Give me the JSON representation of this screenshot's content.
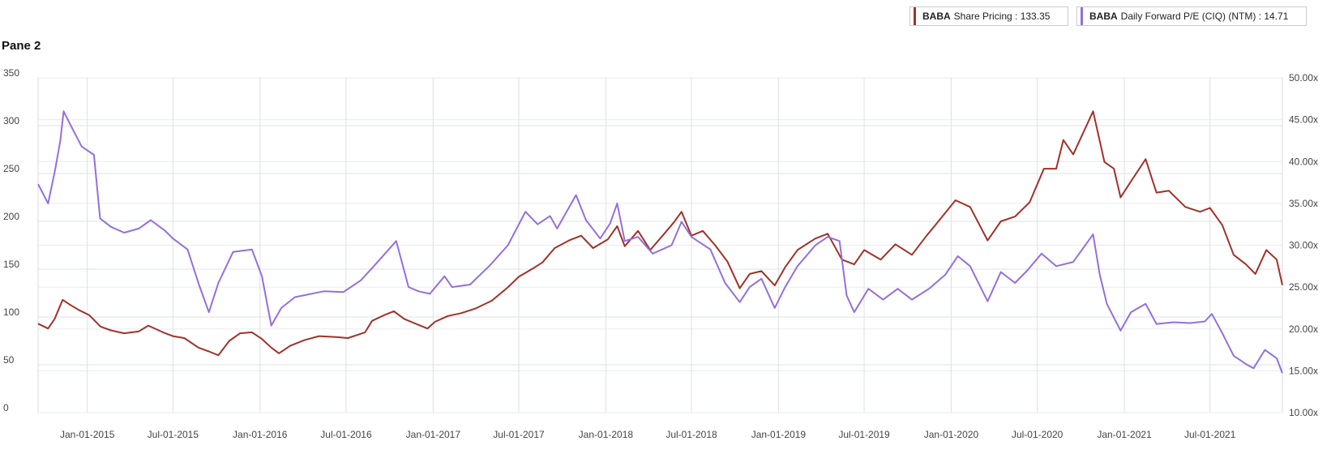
{
  "pane_title": "Pane 2",
  "legend": {
    "price": {
      "ticker": "BABA",
      "label": "Share Pricing : 133.35",
      "color": "#a0322a"
    },
    "pe": {
      "ticker": "BABA",
      "label": "Daily Forward P/E (CIQ) (NTM) : 14.71",
      "color": "#9370db"
    }
  },
  "chart_data": {
    "type": "line",
    "x_ticks": [
      "Jan-01-2015",
      "Jul-01-2015",
      "Jan-01-2016",
      "Jul-01-2016",
      "Jan-01-2017",
      "Jul-01-2017",
      "Jan-01-2018",
      "Jul-01-2018",
      "Jan-01-2019",
      "Jul-01-2019",
      "Jan-01-2020",
      "Jul-01-2020",
      "Jan-01-2021",
      "Jul-01-2021"
    ],
    "left_axis": {
      "ticks": [
        "0",
        "50",
        "100",
        "150",
        "200",
        "250",
        "300",
        "350"
      ],
      "ylim": [
        0,
        350
      ]
    },
    "right_axis": {
      "ticks": [
        "10.00x",
        "15.00x",
        "20.00x",
        "25.00x",
        "30.00x",
        "35.00x",
        "40.00x",
        "45.00x",
        "50.00x"
      ],
      "ylim": [
        10,
        50
      ]
    },
    "grid": true,
    "series": [
      {
        "name": "BABA Share Pricing",
        "axis": "left",
        "color": "#a0322a",
        "points": [
          [
            "2014-09-19",
            93
          ],
          [
            "2014-10-10",
            88
          ],
          [
            "2014-10-24",
            98
          ],
          [
            "2014-11-10",
            118
          ],
          [
            "2014-11-25",
            113
          ],
          [
            "2014-12-15",
            107
          ],
          [
            "2015-01-05",
            102
          ],
          [
            "2015-01-29",
            90
          ],
          [
            "2015-02-20",
            86
          ],
          [
            "2015-03-20",
            83
          ],
          [
            "2015-04-20",
            85
          ],
          [
            "2015-05-10",
            91
          ],
          [
            "2015-06-10",
            84
          ],
          [
            "2015-07-01",
            80
          ],
          [
            "2015-07-25",
            78
          ],
          [
            "2015-08-24",
            68
          ],
          [
            "2015-09-15",
            64
          ],
          [
            "2015-10-05",
            60
          ],
          [
            "2015-10-28",
            75
          ],
          [
            "2015-11-20",
            83
          ],
          [
            "2015-12-15",
            84
          ],
          [
            "2016-01-05",
            77
          ],
          [
            "2016-01-25",
            68
          ],
          [
            "2016-02-10",
            62
          ],
          [
            "2016-03-05",
            70
          ],
          [
            "2016-04-05",
            76
          ],
          [
            "2016-05-05",
            80
          ],
          [
            "2016-06-10",
            79
          ],
          [
            "2016-07-05",
            78
          ],
          [
            "2016-08-10",
            84
          ],
          [
            "2016-08-25",
            96
          ],
          [
            "2016-09-20",
            102
          ],
          [
            "2016-10-10",
            106
          ],
          [
            "2016-11-01",
            98
          ],
          [
            "2016-11-25",
            93
          ],
          [
            "2016-12-20",
            88
          ],
          [
            "2017-01-05",
            95
          ],
          [
            "2017-02-01",
            101
          ],
          [
            "2017-03-01",
            104
          ],
          [
            "2017-04-01",
            109
          ],
          [
            "2017-05-05",
            117
          ],
          [
            "2017-06-08",
            131
          ],
          [
            "2017-07-01",
            142
          ],
          [
            "2017-08-01",
            151
          ],
          [
            "2017-08-20",
            157
          ],
          [
            "2017-09-15",
            172
          ],
          [
            "2017-10-15",
            180
          ],
          [
            "2017-11-10",
            185
          ],
          [
            "2017-12-05",
            172
          ],
          [
            "2018-01-05",
            181
          ],
          [
            "2018-01-25",
            195
          ],
          [
            "2018-02-10",
            174
          ],
          [
            "2018-03-10",
            190
          ],
          [
            "2018-04-05",
            170
          ],
          [
            "2018-05-01",
            185
          ],
          [
            "2018-05-25",
            199
          ],
          [
            "2018-06-10",
            210
          ],
          [
            "2018-07-01",
            185
          ],
          [
            "2018-07-25",
            190
          ],
          [
            "2018-08-20",
            175
          ],
          [
            "2018-09-15",
            158
          ],
          [
            "2018-10-11",
            130
          ],
          [
            "2018-11-01",
            145
          ],
          [
            "2018-11-26",
            148
          ],
          [
            "2018-12-24",
            133
          ],
          [
            "2019-01-15",
            152
          ],
          [
            "2019-02-10",
            170
          ],
          [
            "2019-03-20",
            182
          ],
          [
            "2019-04-15",
            187
          ],
          [
            "2019-05-15",
            160
          ],
          [
            "2019-06-10",
            155
          ],
          [
            "2019-07-01",
            170
          ],
          [
            "2019-08-05",
            160
          ],
          [
            "2019-09-05",
            176
          ],
          [
            "2019-10-10",
            165
          ],
          [
            "2019-11-10",
            185
          ],
          [
            "2019-12-05",
            200
          ],
          [
            "2020-01-10",
            222
          ],
          [
            "2020-02-10",
            215
          ],
          [
            "2020-03-18",
            180
          ],
          [
            "2020-04-15",
            200
          ],
          [
            "2020-05-15",
            205
          ],
          [
            "2020-06-15",
            220
          ],
          [
            "2020-07-15",
            255
          ],
          [
            "2020-08-10",
            255
          ],
          [
            "2020-08-25",
            285
          ],
          [
            "2020-09-15",
            270
          ],
          [
            "2020-10-27",
            315
          ],
          [
            "2020-11-05",
            295
          ],
          [
            "2020-11-20",
            262
          ],
          [
            "2020-12-10",
            255
          ],
          [
            "2020-12-24",
            225
          ],
          [
            "2021-01-10",
            238
          ],
          [
            "2021-02-15",
            265
          ],
          [
            "2021-03-10",
            230
          ],
          [
            "2021-04-05",
            232
          ],
          [
            "2021-05-10",
            215
          ],
          [
            "2021-06-10",
            210
          ],
          [
            "2021-07-01",
            214
          ],
          [
            "2021-07-27",
            196
          ],
          [
            "2021-08-20",
            165
          ],
          [
            "2021-09-15",
            155
          ],
          [
            "2021-10-05",
            145
          ],
          [
            "2021-10-28",
            170
          ],
          [
            "2021-11-19",
            160
          ],
          [
            "2021-12-01",
            133.35
          ]
        ]
      },
      {
        "name": "BABA Daily Forward P/E (CIQ) (NTM)",
        "axis": "right",
        "color": "#9370db",
        "points": [
          [
            "2014-09-19",
            37.3
          ],
          [
            "2014-10-10",
            35.0
          ],
          [
            "2014-10-25",
            39.0
          ],
          [
            "2014-11-05",
            42.5
          ],
          [
            "2014-11-12",
            46.0
          ],
          [
            "2014-11-28",
            44.2
          ],
          [
            "2014-12-20",
            41.8
          ],
          [
            "2015-01-15",
            40.8
          ],
          [
            "2015-01-28",
            33.2
          ],
          [
            "2015-02-20",
            32.2
          ],
          [
            "2015-03-20",
            31.5
          ],
          [
            "2015-04-20",
            32.0
          ],
          [
            "2015-05-15",
            33.0
          ],
          [
            "2015-06-15",
            31.7
          ],
          [
            "2015-07-01",
            30.8
          ],
          [
            "2015-08-01",
            29.5
          ],
          [
            "2015-08-25",
            25.3
          ],
          [
            "2015-09-15",
            22.0
          ],
          [
            "2015-10-05",
            25.5
          ],
          [
            "2015-11-05",
            29.2
          ],
          [
            "2015-12-15",
            29.5
          ],
          [
            "2016-01-05",
            26.3
          ],
          [
            "2016-01-25",
            20.4
          ],
          [
            "2016-02-15",
            22.5
          ],
          [
            "2016-03-15",
            23.8
          ],
          [
            "2016-05-15",
            24.5
          ],
          [
            "2016-06-25",
            24.4
          ],
          [
            "2016-08-01",
            25.8
          ],
          [
            "2016-09-01",
            27.7
          ],
          [
            "2016-10-15",
            30.5
          ],
          [
            "2016-11-10",
            25.0
          ],
          [
            "2016-12-01",
            24.5
          ],
          [
            "2016-12-25",
            24.2
          ],
          [
            "2017-01-25",
            26.3
          ],
          [
            "2017-02-10",
            25.0
          ],
          [
            "2017-03-20",
            25.3
          ],
          [
            "2017-05-01",
            27.6
          ],
          [
            "2017-06-08",
            30.0
          ],
          [
            "2017-07-15",
            34.0
          ],
          [
            "2017-08-10",
            32.5
          ],
          [
            "2017-09-05",
            33.5
          ],
          [
            "2017-09-20",
            32.0
          ],
          [
            "2017-10-30",
            36.0
          ],
          [
            "2017-11-20",
            33.0
          ],
          [
            "2017-12-20",
            30.8
          ],
          [
            "2018-01-10",
            32.6
          ],
          [
            "2018-01-25",
            35.0
          ],
          [
            "2018-02-10",
            30.5
          ],
          [
            "2018-03-10",
            31.0
          ],
          [
            "2018-04-10",
            29.0
          ],
          [
            "2018-05-20",
            30.0
          ],
          [
            "2018-06-10",
            32.8
          ],
          [
            "2018-07-01",
            31.0
          ],
          [
            "2018-08-10",
            29.5
          ],
          [
            "2018-09-10",
            25.5
          ],
          [
            "2018-10-11",
            23.2
          ],
          [
            "2018-11-01",
            25.0
          ],
          [
            "2018-11-26",
            26.0
          ],
          [
            "2018-12-24",
            22.5
          ],
          [
            "2019-01-15",
            25.0
          ],
          [
            "2019-02-10",
            27.5
          ],
          [
            "2019-03-20",
            30.0
          ],
          [
            "2019-04-15",
            31.0
          ],
          [
            "2019-05-10",
            30.5
          ],
          [
            "2019-05-25",
            24.0
          ],
          [
            "2019-06-10",
            22.0
          ],
          [
            "2019-07-10",
            24.8
          ],
          [
            "2019-08-10",
            23.5
          ],
          [
            "2019-09-10",
            24.8
          ],
          [
            "2019-10-10",
            23.5
          ],
          [
            "2019-11-15",
            24.8
          ],
          [
            "2019-12-20",
            26.5
          ],
          [
            "2020-01-15",
            28.7
          ],
          [
            "2020-02-10",
            27.5
          ],
          [
            "2020-03-18",
            23.3
          ],
          [
            "2020-04-15",
            26.8
          ],
          [
            "2020-05-15",
            25.5
          ],
          [
            "2020-06-10",
            27.0
          ],
          [
            "2020-07-10",
            29.0
          ],
          [
            "2020-08-10",
            27.5
          ],
          [
            "2020-09-15",
            28.0
          ],
          [
            "2020-10-27",
            31.3
          ],
          [
            "2020-11-10",
            26.5
          ],
          [
            "2020-11-25",
            23.0
          ],
          [
            "2020-12-24",
            19.8
          ],
          [
            "2021-01-15",
            22.0
          ],
          [
            "2021-02-15",
            23.0
          ],
          [
            "2021-03-10",
            20.6
          ],
          [
            "2021-04-15",
            20.8
          ],
          [
            "2021-05-20",
            20.7
          ],
          [
            "2021-06-20",
            20.9
          ],
          [
            "2021-07-05",
            21.8
          ],
          [
            "2021-07-27",
            19.5
          ],
          [
            "2021-08-20",
            16.8
          ],
          [
            "2021-09-15",
            15.8
          ],
          [
            "2021-10-01",
            15.3
          ],
          [
            "2021-10-25",
            17.5
          ],
          [
            "2021-11-19",
            16.5
          ],
          [
            "2021-12-01",
            14.71
          ]
        ]
      }
    ]
  }
}
